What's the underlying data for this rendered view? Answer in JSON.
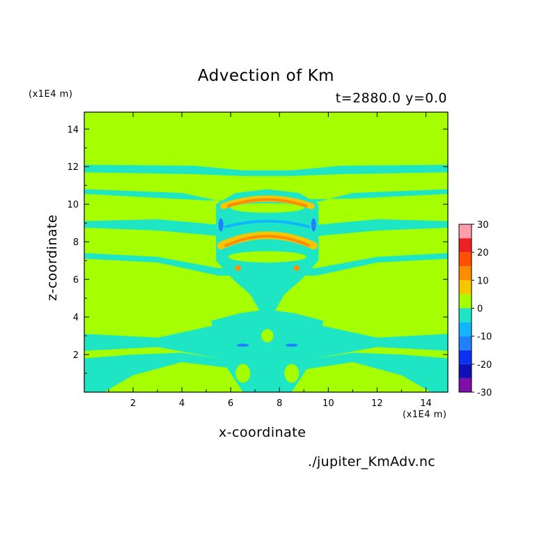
{
  "chart_data": {
    "type": "heatmap",
    "title": "Advection of Km",
    "subtitle": "t=2880.0 y=0.0",
    "xlabel": "x-coordinate",
    "ylabel": "z-coordinate",
    "x_unit": "(x1E4 m)",
    "y_unit": "(x1E4 m)",
    "xlim": [
      0.0,
      14.9
    ],
    "ylim": [
      0.0,
      14.9
    ],
    "x_ticks": [
      "2",
      "4",
      "6",
      "8",
      "10",
      "12",
      "14"
    ],
    "y_ticks": [
      "2",
      "4",
      "6",
      "8",
      "10",
      "12",
      "14"
    ],
    "colorbar": {
      "levels": [
        -30,
        -25,
        -20,
        -15,
        -10,
        -5,
        0,
        5,
        10,
        15,
        20,
        25,
        30
      ],
      "labels": [
        "30",
        "20",
        "10",
        "0",
        "-10",
        "-20",
        "-30"
      ],
      "colors": [
        "#7f0fa8",
        "#1010b8",
        "#0a32f0",
        "#2080ff",
        "#10b4ff",
        "#1ee6c4",
        "#a6ff00",
        "#f6c600",
        "#ff8c00",
        "#ff5000",
        "#f02020",
        "#ff9ea8"
      ]
    },
    "background_level_color": "#a6ff00",
    "negative_small_color": "#1ee6c4",
    "positive_small_color": "#f6c600"
  },
  "source_file": "./jupiter_KmAdv.nc"
}
